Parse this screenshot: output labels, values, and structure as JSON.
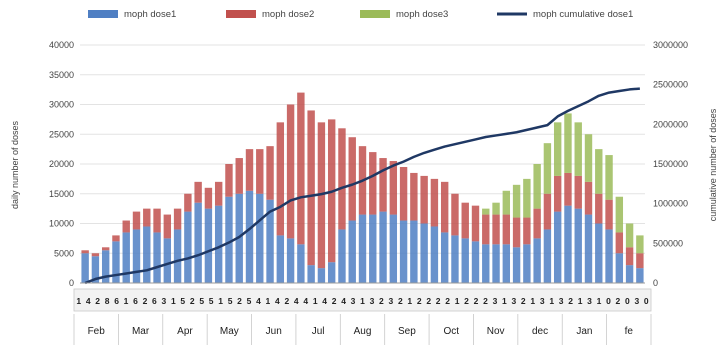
{
  "chart_data": {
    "type": "bar",
    "ylabel": "daily number of doses",
    "y2label": "cumulative number of doses",
    "ylim": [
      0,
      40000
    ],
    "y2lim": [
      0,
      3000000
    ],
    "yticks": [
      "0",
      "5000",
      "10000",
      "15000",
      "20000",
      "25000",
      "30000",
      "35000",
      "40000"
    ],
    "y2ticks": [
      "0",
      "500000",
      "1000000",
      "1500000",
      "2000000",
      "2500000",
      "3000000"
    ],
    "grid": true,
    "legend_position": "top",
    "colors": {
      "dose1": "#4f7fc3",
      "dose2": "#c1504d",
      "dose3": "#9bbb59",
      "cumulative": "#1f3864"
    },
    "legend": [
      {
        "label": "moph dose1",
        "kind": "bar",
        "series": "dose1"
      },
      {
        "label": "moph dose2",
        "kind": "bar",
        "series": "dose2"
      },
      {
        "label": "moph dose3",
        "kind": "bar",
        "series": "dose3"
      },
      {
        "label": "moph cumulative dose1",
        "kind": "line",
        "series": "cumulative"
      }
    ],
    "months": [
      "Feb",
      "Mar",
      "Apr",
      "May",
      "Jun",
      "Jul",
      "Aug",
      "Sep",
      "Oct",
      "Nov",
      "dec",
      "Jan",
      "fe"
    ],
    "week_labels": [
      "1",
      "4",
      "2",
      "8",
      "6",
      "1",
      "6",
      "2",
      "6",
      "3",
      "1",
      "5",
      "2",
      "5",
      "5",
      "1",
      "5",
      "2",
      "5",
      "4",
      "1",
      "4",
      "2",
      "4",
      "4",
      "1",
      "4",
      "2",
      "4",
      "3",
      "1",
      "3",
      "2",
      "3",
      "2",
      "1",
      "2",
      "2",
      "2",
      "2",
      "1",
      "2",
      "2",
      "2",
      "3",
      "1",
      "3",
      "2",
      "1",
      "3",
      "1",
      "3",
      "2",
      "1",
      "3",
      "1",
      "0",
      "2",
      "0",
      "3",
      "0"
    ],
    "weekly": {
      "dose1": [
        5000,
        4500,
        5500,
        7000,
        8500,
        9000,
        9500,
        8500,
        7500,
        9000,
        12000,
        13500,
        12500,
        13000,
        14500,
        15000,
        15500,
        15000,
        14000,
        8000,
        7500,
        6500,
        3000,
        2500,
        3500,
        9000,
        10500,
        11500,
        11500,
        12000,
        11500,
        10500,
        10500,
        10000,
        9500,
        8500,
        8000,
        7500,
        7000,
        6500,
        6500,
        6500,
        6000,
        6500,
        7500,
        9000,
        12000,
        13000,
        12500,
        11500,
        10000,
        9000,
        5000,
        3000,
        2500
      ],
      "dose2": [
        500,
        500,
        500,
        1000,
        2000,
        3000,
        3000,
        4000,
        4000,
        3500,
        3000,
        3500,
        3500,
        4000,
        5500,
        6000,
        7000,
        7500,
        9000,
        19000,
        22500,
        25500,
        26000,
        24500,
        24000,
        17000,
        14000,
        11500,
        10500,
        9000,
        9000,
        9000,
        8000,
        8000,
        8000,
        8500,
        7000,
        6000,
        6000,
        5000,
        5000,
        5000,
        5000,
        4500,
        5000,
        6000,
        6000,
        5500,
        5500,
        5500,
        5000,
        5000,
        3500,
        3000,
        2500
      ],
      "dose3": [
        0,
        0,
        0,
        0,
        0,
        0,
        0,
        0,
        0,
        0,
        0,
        0,
        0,
        0,
        0,
        0,
        0,
        0,
        0,
        0,
        0,
        0,
        0,
        0,
        0,
        0,
        0,
        0,
        0,
        0,
        0,
        0,
        0,
        0,
        0,
        0,
        0,
        0,
        0,
        1000,
        2000,
        4000,
        5500,
        6500,
        7500,
        8500,
        9000,
        10000,
        9000,
        8000,
        7500,
        7500,
        6000,
        4000,
        3000
      ]
    },
    "cumulative_dose1": [
      0,
      50000,
      80000,
      100000,
      120000,
      140000,
      160000,
      200000,
      240000,
      280000,
      310000,
      350000,
      400000,
      450000,
      510000,
      580000,
      680000,
      790000,
      900000,
      960000,
      1040000,
      1080000,
      1100000,
      1120000,
      1150000,
      1200000,
      1240000,
      1290000,
      1350000,
      1420000,
      1480000,
      1530000,
      1590000,
      1640000,
      1680000,
      1720000,
      1750000,
      1780000,
      1810000,
      1840000,
      1860000,
      1880000,
      1900000,
      1930000,
      1960000,
      1990000,
      2100000,
      2170000,
      2230000,
      2290000,
      2360000,
      2400000,
      2420000,
      2440000,
      2450000
    ]
  }
}
